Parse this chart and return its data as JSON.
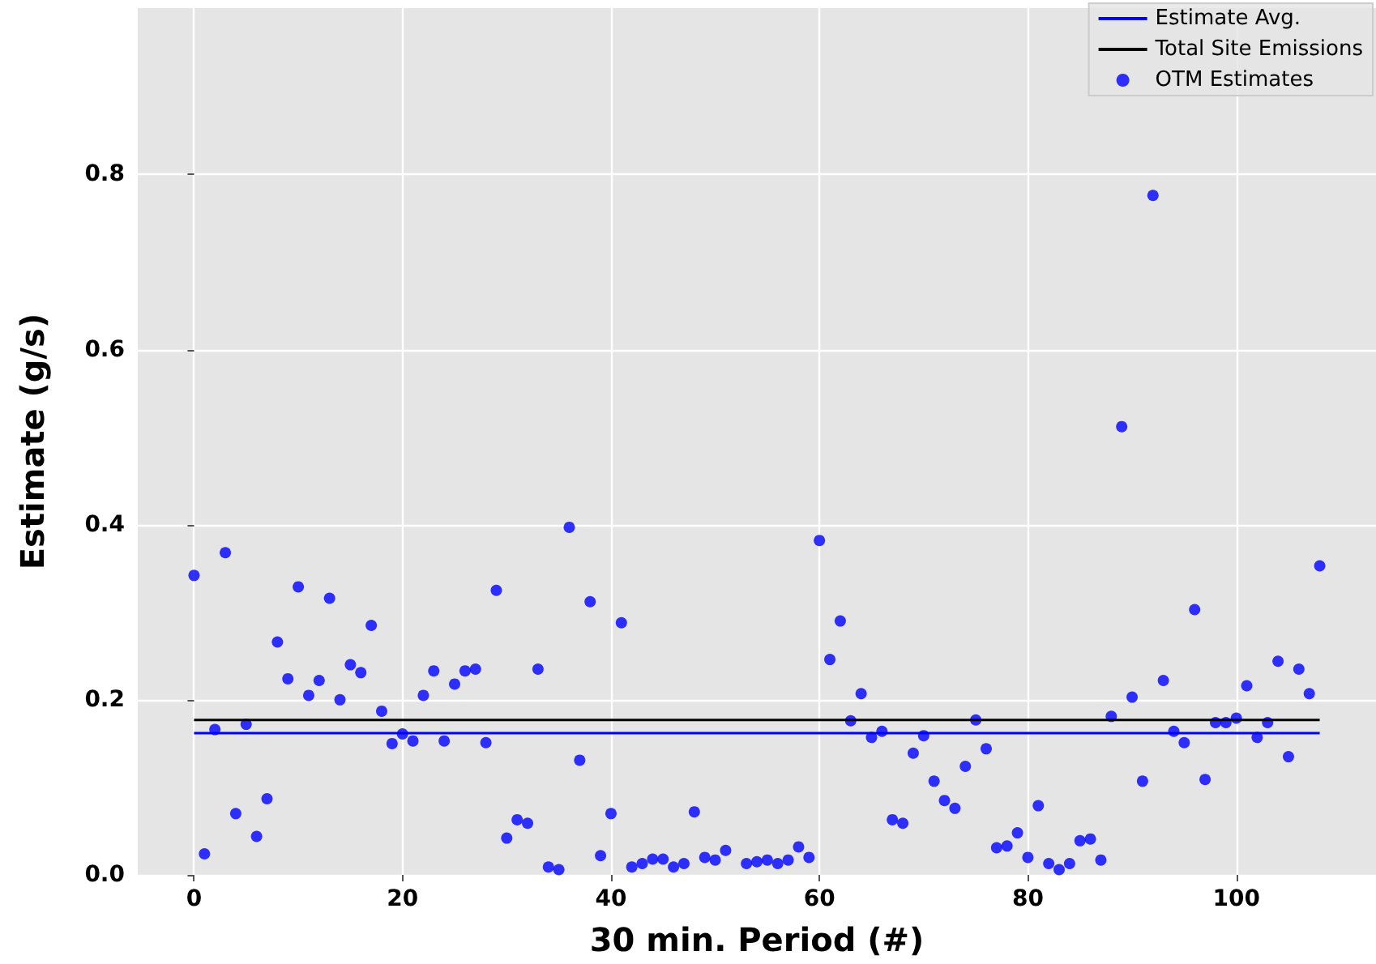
{
  "chart_data": {
    "type": "scatter",
    "xlabel": "30 min. Period (#)",
    "ylabel": "Estimate (g/s)",
    "xlim": [
      -5.4,
      113.4
    ],
    "xticks": [
      0,
      20,
      40,
      60,
      80,
      100
    ],
    "ylim": [
      0,
      0.99
    ],
    "yticks": [
      {
        "value": 0,
        "label": "0.0"
      },
      {
        "value": 0.2,
        "label": "0.2"
      },
      {
        "value": 0.4,
        "label": "0.4"
      },
      {
        "value": 0.6,
        "label": "0.6"
      },
      {
        "value": 0.8,
        "label": "0.8"
      }
    ],
    "grid": true,
    "legend": "top right",
    "series": [
      {
        "name": "Estimate Avg.",
        "type": "line",
        "color": "#0000ff",
        "x": [
          0,
          108
        ],
        "values": [
          0.162,
          0.162
        ],
        "marker": "none"
      },
      {
        "name": "Total Site Emissions",
        "type": "line",
        "color": "#000000",
        "x": [
          0,
          108
        ],
        "values": [
          0.177,
          0.177
        ],
        "marker": "none"
      },
      {
        "name": "OTM Estimates",
        "color": "#0000ff",
        "marker": "circle",
        "x": [
          0,
          1,
          2,
          3,
          4,
          5,
          6,
          7,
          8,
          9,
          10,
          11,
          12,
          13,
          14,
          15,
          16,
          17,
          18,
          19,
          20,
          21,
          22,
          23,
          24,
          25,
          26,
          27,
          28,
          29,
          30,
          31,
          32,
          33,
          34,
          35,
          36,
          37,
          38,
          39,
          40,
          41,
          42,
          43,
          44,
          45,
          46,
          47,
          48,
          49,
          50,
          51,
          52,
          53,
          54,
          55,
          56,
          57,
          58,
          59,
          60,
          61,
          62,
          63,
          64,
          65,
          66,
          67,
          68,
          69,
          70,
          71,
          72,
          73,
          74,
          75,
          76,
          77,
          78,
          79,
          80,
          81,
          82,
          83,
          84,
          85,
          86,
          87,
          88,
          89,
          90,
          91,
          92,
          93,
          94,
          95,
          96,
          97,
          98,
          99,
          100,
          101,
          102,
          103,
          104,
          105,
          106,
          107,
          108
        ],
        "values": [
          0.342,
          0.024,
          0.166,
          0.368,
          0.07,
          0.172,
          0.044,
          0.087,
          0.266,
          0.224,
          0.329,
          0.205,
          0.222,
          0.316,
          0.2,
          0.24,
          0.231,
          0.285,
          0.187,
          0.15,
          0.161,
          0.153,
          0.205,
          0.233,
          0.153,
          0.218,
          0.233,
          0.235,
          0.151,
          0.325,
          0.042,
          0.063,
          0.059,
          0.235,
          0.009,
          0.006,
          0.397,
          0.131,
          0.312,
          0.022,
          0.07,
          0.288,
          0.009,
          0.013,
          0.018,
          0.018,
          0.009,
          0.013,
          0.072,
          0.02,
          0.017,
          0.028,
          null,
          0.013,
          0.015,
          0.017,
          0.013,
          0.017,
          0.032,
          0.02,
          0.382,
          0.246,
          0.29,
          0.176,
          0.207,
          0.157,
          0.164,
          0.063,
          0.059,
          0.139,
          0.159,
          0.107,
          0.085,
          0.076,
          0.124,
          0.177,
          0.144,
          0.031,
          0.033,
          0.048,
          0.02,
          0.079,
          0.013,
          0.006,
          0.013,
          0.039,
          0.041,
          0.017,
          0.181,
          0.512,
          0.203,
          0.107,
          0.776,
          0.222,
          0.164,
          0.151,
          0.303,
          0.109,
          0.174,
          0.174,
          0.179,
          0.216,
          0.157,
          0.174,
          0.244,
          0.135,
          0.235,
          0.207,
          0.353
        ]
      }
    ]
  }
}
